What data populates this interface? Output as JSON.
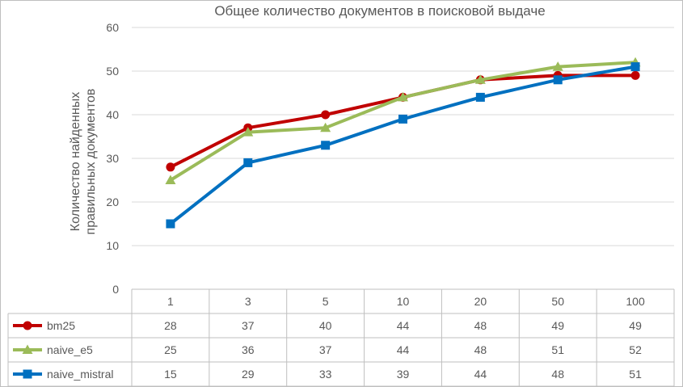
{
  "chart_data": {
    "type": "line",
    "title": "Общее количество документов в поисковой выдаче",
    "xlabel": "",
    "ylabel": [
      "Количество найденных",
      "правильных документов"
    ],
    "ylim": [
      0,
      60
    ],
    "yticks": [
      0,
      10,
      20,
      30,
      40,
      50,
      60
    ],
    "grid": true,
    "legend": "data-table",
    "categories": [
      "1",
      "3",
      "5",
      "10",
      "20",
      "50",
      "100"
    ],
    "series": [
      {
        "name": "bm25",
        "color": "#c00000",
        "marker": "circle",
        "values": [
          28,
          37,
          40,
          44,
          48,
          49,
          49
        ]
      },
      {
        "name": "naive_e5",
        "color": "#9bbb59",
        "marker": "triangle",
        "values": [
          25,
          36,
          37,
          44,
          48,
          51,
          52
        ]
      },
      {
        "name": "naive_mistral",
        "color": "#0070c0",
        "marker": "square",
        "values": [
          15,
          29,
          33,
          39,
          44,
          48,
          51
        ]
      }
    ]
  }
}
